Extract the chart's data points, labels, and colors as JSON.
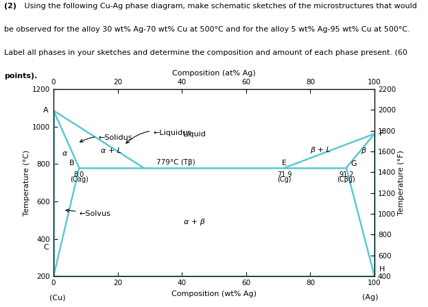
{
  "title_bold": "(2)",
  "title_rest": " Using the following Cu-Ag phase diagram, make schematic sketches of the microstructures that would\nbe observed for the alloy 30 wt% Ag-70 wt% Cu at 500°C and for the alloy 5 wt% Ag-95 wt% Cu at 500°C.\nLabel all phases in your sketches and determine the composition and amount of each phase present. (",
  "title_bold2": "60\npoints).",
  "top_xlabel": "Composition (at% Ag)",
  "bottom_xlabel": "Composition (wt% Ag)",
  "ylabel_left": "Temperature (°C)",
  "ylabel_right": "Temperature (°F)",
  "xlim": [
    0,
    100
  ],
  "ylim_C": [
    200,
    1200
  ],
  "ylim_F": [
    400,
    2200
  ],
  "top_xticks": [
    0,
    20,
    40,
    60,
    80,
    100
  ],
  "bottom_xticks": [
    0,
    20,
    40,
    60,
    80,
    100
  ],
  "yticks_C": [
    200,
    400,
    600,
    800,
    1000,
    1200
  ],
  "yticks_F": [
    400,
    600,
    800,
    1000,
    1200,
    1400,
    1600,
    1800,
    2000,
    2200
  ],
  "line_color": "#5bc8d5",
  "background_color": "#ffffff",
  "text_color": "#000000",
  "label_A": "A",
  "label_B": "B",
  "label_E": "E",
  "label_F": "F",
  "label_G": "G",
  "label_C": "C",
  "label_H": "H",
  "label_alpha": "α",
  "label_beta": "β",
  "label_liquid": "Liquid",
  "label_alpha_L": "α + L",
  "label_beta_L": "β + L",
  "label_alpha_beta": "α + β",
  "label_eutectic_temp": "779°C (Tβ)",
  "label_liquidus": "←Liquidus",
  "label_solidus": "←Solidus",
  "label_solvus": "←Solvus",
  "b_composition_line1": "8.0",
  "b_composition_line2": "(Cαg)",
  "e_composition_line1": "71.9",
  "e_composition_line2": "(Cg)",
  "g_composition_line1": "91.2",
  "g_composition_line2": "(Cβg)",
  "cu_label": "(Cu)",
  "ag_label": "(Ag)"
}
